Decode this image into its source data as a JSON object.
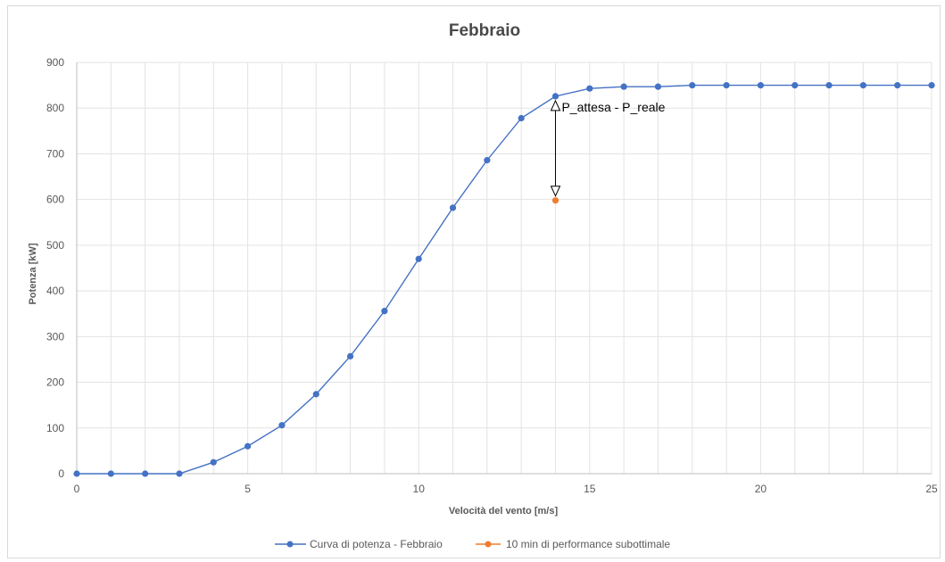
{
  "chart_data": {
    "type": "line",
    "title": "Febbraio",
    "xlabel": "Velocità del vento [m/s]",
    "ylabel": "Potenza [kW]",
    "xlim": [
      0,
      25
    ],
    "ylim": [
      0,
      900
    ],
    "x_ticks": [
      0,
      5,
      10,
      15,
      20,
      25
    ],
    "y_ticks": [
      0,
      100,
      200,
      300,
      400,
      500,
      600,
      700,
      800,
      900
    ],
    "grid": true,
    "legend_position": "bottom",
    "series": [
      {
        "name": "Curva di potenza - Febbraio",
        "color": "#4472C4",
        "marker": "circle",
        "x": [
          0,
          1,
          2,
          3,
          4,
          5,
          6,
          7,
          8,
          9,
          10,
          11,
          12,
          13,
          14,
          15,
          16,
          17,
          18,
          19,
          20,
          21,
          22,
          23,
          24,
          25
        ],
        "y": [
          0,
          0,
          0,
          0,
          25,
          60,
          106,
          174,
          257,
          356,
          470,
          582,
          686,
          778,
          826,
          843,
          847,
          847,
          850,
          850,
          850,
          850,
          850,
          850,
          850,
          850
        ]
      },
      {
        "name": "10 min di performance subottimale",
        "color": "#ED7D31",
        "marker": "circle",
        "x": [
          14
        ],
        "y": [
          598
        ]
      }
    ],
    "annotation": {
      "text": "P_attesa - P_reale",
      "x": 14,
      "y_from": 826,
      "y_to": 598
    }
  }
}
